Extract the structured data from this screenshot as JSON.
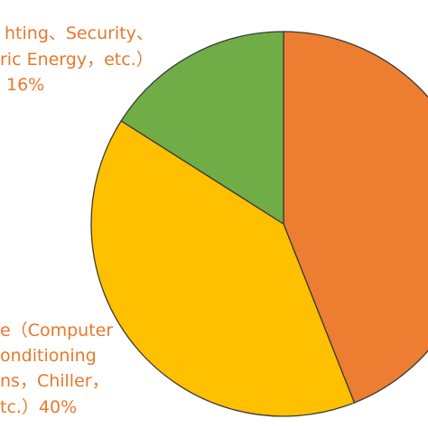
{
  "chart_data": {
    "type": "pie",
    "slices": [
      {
        "value": 44,
        "color": "#ED7D31",
        "label_lines": []
      },
      {
        "value": 40,
        "color": "#FFC000",
        "label_lines": [
          "e（Computer",
          "onditioning",
          "ns，Chiller，",
          "tc.）40%"
        ]
      },
      {
        "value": 16,
        "color": "#70AD47",
        "label_lines": [
          "hting、Security、",
          "ric Energy，etc.）",
          "16%"
        ]
      }
    ],
    "label_color": "#E8782A"
  }
}
